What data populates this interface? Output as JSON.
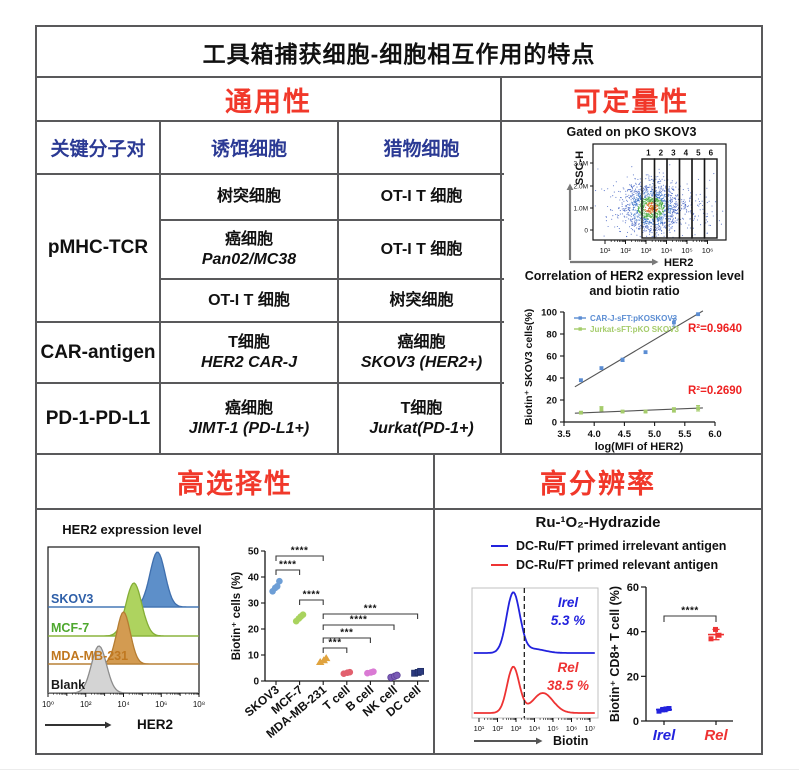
{
  "title": "工具箱捕获细胞-细胞相互作用的特点",
  "colors": {
    "accent_red": "#f1382a",
    "header_blue": "#2b3a94",
    "grid": "#59595b",
    "irel_blue": "#2222dd",
    "rel_red": "#ee3333"
  },
  "sections": {
    "universality": {
      "header": "通用性",
      "col_headers": [
        "关键分子对",
        "诱饵细胞",
        "猎物细胞"
      ],
      "rows": [
        {
          "pair": "pMHC-TCR",
          "bait": "树突细胞",
          "prey": "OT-I T 细胞"
        },
        {
          "bait": "癌细胞",
          "bait_sub": "Pan02/MC38",
          "prey": "OT-I T 细胞"
        },
        {
          "bait": "OT-I T 细胞",
          "prey": "树突细胞"
        },
        {
          "pair": "CAR-antigen",
          "bait": "T细胞",
          "bait_sub": "HER2 CAR-J",
          "prey": "癌细胞",
          "prey_sub": "SKOV3 (HER2+)"
        },
        {
          "pair": "PD-1-PD-L1",
          "bait": "癌细胞",
          "bait_sub": "JIMT-1 (PD-L1+)",
          "prey": "T细胞",
          "prey_sub": "Jurkat(PD-1+)"
        }
      ]
    },
    "quantifiability": {
      "header": "可定量性"
    },
    "selectivity": {
      "header": "高选择性"
    },
    "resolution": {
      "header": "高分辨率",
      "title": "Ru-¹O₂-Hydrazide",
      "legend": [
        {
          "label": "DC-Ru/FT primed irrelevant antigen",
          "color": "#2222dd"
        },
        {
          "label": "DC-Ru/FT primed relevant antigen",
          "color": "#ee3333"
        }
      ]
    }
  },
  "chart_data": [
    {
      "id": "flow_gate",
      "type": "scatter",
      "title": "Gated on pKO SKOV3",
      "xlabel": "HER2",
      "ylabel": "SSC-H",
      "x_ticks": [
        "10¹",
        "10²",
        "10³",
        "10⁴",
        "10⁵",
        "10⁶"
      ],
      "y_ticks": [
        "3.0M",
        "2.0M",
        "1.0M",
        "0"
      ],
      "gates": [
        "1",
        "2",
        "3",
        "4",
        "5",
        "6"
      ],
      "cloud": {
        "center_log": 3.3,
        "center_ssc_M": 1.15,
        "n_points": 1600
      }
    },
    {
      "id": "correlation",
      "type": "scatter",
      "title": "Correlation of HER2 expression level and biotin ratio",
      "xlabel": "log(MFI of HER2)",
      "ylabel": "Biotin⁺ SKOV3 cells(%)",
      "xlim": [
        3.5,
        6.0
      ],
      "ylim": [
        0,
        100
      ],
      "x_ticks": [
        3.5,
        4.0,
        4.5,
        5.0,
        5.5,
        6.0
      ],
      "y_ticks": [
        0,
        20,
        40,
        60,
        80,
        100
      ],
      "series": [
        {
          "name": "CAR-J-sFT:pKOSKOV3",
          "color": "#5b8dd3",
          "x": [
            3.78,
            4.12,
            4.47,
            4.85,
            5.32,
            5.72
          ],
          "y": [
            38,
            49,
            56.5,
            63.5,
            90.5,
            98
          ],
          "err": [
            1,
            1,
            1.5,
            1,
            3.5,
            1
          ],
          "r2_label": "R²=0.9640",
          "fit": [
            [
              3.68,
              32
            ],
            [
              5.8,
              101
            ]
          ]
        },
        {
          "name": "Jurkat-sFT:pKO SKOV3",
          "color": "#a5cc6b",
          "x": [
            3.78,
            4.12,
            4.47,
            4.85,
            5.32,
            5.72
          ],
          "y": [
            8.5,
            12,
            9.5,
            9.5,
            11,
            12.5
          ],
          "err": [
            1,
            2,
            1,
            1,
            2,
            2.5
          ],
          "r2_label": "R²=0.2690",
          "fit": [
            [
              3.68,
              8
            ],
            [
              5.8,
              12.8
            ]
          ]
        }
      ],
      "r2_color": "#ee2222"
    },
    {
      "id": "her2_hist",
      "type": "area",
      "title": "HER2 expression level",
      "xlabel": "HER2",
      "x_ticks": [
        "10⁰",
        "10²",
        "10⁴",
        "10⁶",
        "10⁸"
      ],
      "series": [
        {
          "name": "SKOV3",
          "peak_log": 5.8,
          "sd_log": 0.4,
          "fill": "#5d8fc9",
          "line": "#3f6fae",
          "label_color": "#2e5fa8",
          "base_color": "#9dc3e6"
        },
        {
          "name": "MCF-7",
          "peak_log": 4.55,
          "sd_log": 0.42,
          "fill": "#aed35f",
          "line": "#84ae36",
          "label_color": "#4ea82e",
          "base_color": "#c9e29a"
        },
        {
          "name": "MDA-MB-231",
          "peak_log": 4.0,
          "sd_log": 0.36,
          "fill": "#d39b51",
          "line": "#b57d32",
          "label_color": "#c07820",
          "base_color": "#ddbc8b"
        },
        {
          "name": "Blank",
          "peak_log": 2.7,
          "sd_log": 0.4,
          "fill": "#d4d4d4",
          "line": "#8c8c8c",
          "label_color": "#1a1a1a",
          "base_color": "#111111"
        }
      ]
    },
    {
      "id": "biotin_cells",
      "type": "scatter",
      "ylabel": "Biotin⁺ cells (%)",
      "ylim": [
        0,
        50
      ],
      "y_ticks": [
        0,
        10,
        20,
        30,
        40,
        50
      ],
      "categories": [
        "SKOV3",
        "MCF-7",
        "MDA-MB-231",
        "T cell",
        "B cell",
        "NK cell",
        "DC cell"
      ],
      "values": [
        [
          34.5,
          35.8,
          36.4,
          38.4
        ],
        [
          23,
          24,
          24.8,
          25.5
        ],
        [
          7.3,
          8,
          8.8
        ],
        [
          2.8,
          3.2,
          3.4
        ],
        [
          3,
          3.3,
          3.6
        ],
        [
          1.4,
          1.8,
          2.2
        ],
        [
          3,
          3.3,
          3.7
        ]
      ],
      "colors": [
        "#6d9ed6",
        "#a9d35e",
        "#e0a33e",
        "#e2606e",
        "#da7ad4",
        "#7a5ab5",
        "#2c3a7e"
      ],
      "markers": [
        "circle",
        "circle",
        "triangle",
        "circle",
        "circle",
        "circle",
        "square"
      ],
      "comparisons": [
        {
          "a": 0,
          "b": 1,
          "stars": "****"
        },
        {
          "a": 0,
          "b": 2,
          "stars": "****"
        },
        {
          "a": 1,
          "b": 2,
          "stars": "****"
        },
        {
          "a": 2,
          "b": 3,
          "stars": "***"
        },
        {
          "a": 2,
          "b": 4,
          "stars": "***"
        },
        {
          "a": 2,
          "b": 5,
          "stars": "****"
        },
        {
          "a": 2,
          "b": 6,
          "stars": "***"
        }
      ]
    },
    {
      "id": "biotin_hist",
      "type": "area",
      "xlabel": "Biotin",
      "x_ticks": [
        "10¹",
        "10²",
        "10³",
        "10⁴",
        "10⁵",
        "10⁶",
        "10⁷"
      ],
      "gate_log": 3.45,
      "series": [
        {
          "name": "Irel",
          "pct": "5.3 %",
          "color": "#2222dd",
          "peaks": [
            {
              "log": 2.85,
              "sd": 0.36,
              "h": 60
            },
            {
              "log": 3.95,
              "sd": 0.6,
              "h": 4
            }
          ]
        },
        {
          "name": "Rel",
          "pct": "38.5 %",
          "color": "#ee3333",
          "peaks": [
            {
              "log": 2.85,
              "sd": 0.33,
              "h": 46
            },
            {
              "log": 4.45,
              "sd": 0.55,
              "h": 20
            }
          ]
        }
      ]
    },
    {
      "id": "cd8",
      "type": "scatter",
      "ylabel": "Biotin⁺ CD8+ T cell (%)",
      "ylim": [
        0,
        60
      ],
      "y_ticks": [
        0,
        20,
        40,
        60
      ],
      "categories": [
        "Irel",
        "Rel"
      ],
      "cat_colors": [
        "#2222dd",
        "#ee3333"
      ],
      "values": [
        [
          4.4,
          5,
          5.4,
          5.6
        ],
        [
          36.8,
          38.4,
          41
        ]
      ],
      "mean_err": [
        [
          5.1,
          0.9
        ],
        [
          38.7,
          2.3
        ]
      ],
      "comparisons": [
        {
          "a": 0,
          "b": 1,
          "stars": "****"
        }
      ]
    }
  ]
}
